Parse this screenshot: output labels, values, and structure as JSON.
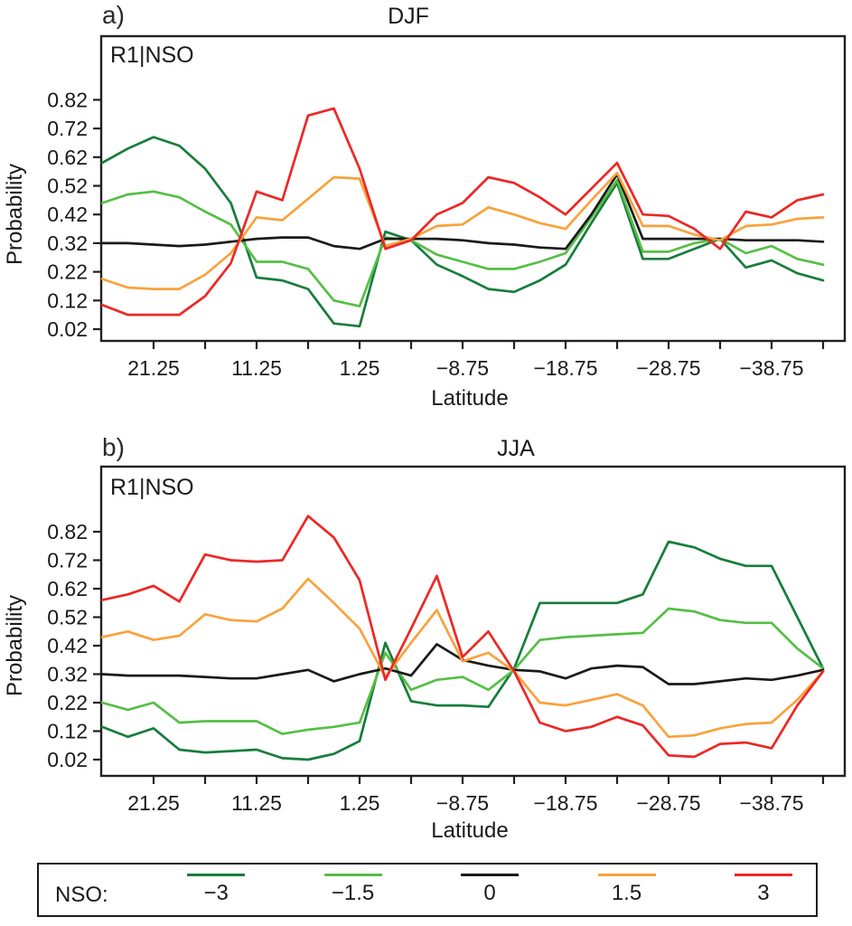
{
  "figure": {
    "panels": [
      {
        "corner_label": "a)",
        "title": "DJF",
        "inner_label": "R1|NSO",
        "ylabel": "Probability",
        "xlabel": "Latitude"
      },
      {
        "corner_label": "b)",
        "title": "JJA",
        "inner_label": "R1|NSO",
        "ylabel": "Probability",
        "xlabel": "Latitude"
      }
    ],
    "legend": {
      "prefix": "NSO:",
      "entries": [
        {
          "label": "−3",
          "color": "#177d3b"
        },
        {
          "label": "−1.5",
          "color": "#55bf45"
        },
        {
          "label": "0",
          "color": "#1a1a1a"
        },
        {
          "label": "1.5",
          "color": "#f9a23c"
        },
        {
          "label": "3",
          "color": "#ed2724"
        }
      ]
    },
    "colors": {
      "axis": "#231f20",
      "dark_green": "#177d3b",
      "light_green": "#55bf45",
      "black": "#1a1a1a",
      "orange": "#f9a23c",
      "red": "#ed2724"
    }
  },
  "chart_data": [
    {
      "type": "line",
      "title": "DJF",
      "annotation": "R1|NSO",
      "xlabel": "Latitude",
      "ylabel": "Probability",
      "x": [
        26.25,
        23.75,
        21.25,
        18.75,
        16.25,
        13.75,
        11.25,
        8.75,
        6.25,
        3.75,
        1.25,
        -1.25,
        -3.75,
        -6.25,
        -8.75,
        -11.25,
        -13.75,
        -16.25,
        -18.75,
        -21.25,
        -23.75,
        -26.25,
        -28.75,
        -31.25,
        -33.75,
        -36.25,
        -38.75,
        -41.25,
        -43.75
      ],
      "xlim": [
        26.5,
        -45.9
      ],
      "ylim": [
        -0.02,
        1.04
      ],
      "grid": false,
      "y_ticks": [
        {
          "label": "0.02",
          "value": 0.02
        },
        {
          "label": "0.12",
          "value": 0.12
        },
        {
          "label": "0.22",
          "value": 0.22
        },
        {
          "label": "0.32",
          "value": 0.32
        },
        {
          "label": "0.42",
          "value": 0.42
        },
        {
          "label": "0.52",
          "value": 0.52
        },
        {
          "label": "0.62",
          "value": 0.62
        },
        {
          "label": "0.72",
          "value": 0.72
        },
        {
          "label": "0.82",
          "value": 0.82
        }
      ],
      "x_minor_ticks": [
        21.25,
        16.25,
        11.25,
        6.25,
        1.25,
        -3.75,
        -8.75,
        -13.75,
        -18.75,
        -23.75,
        -28.75,
        -33.75,
        -38.75,
        -43.75
      ],
      "x_major_ticks": [
        {
          "label": "21.25",
          "lat": 21.25
        },
        {
          "label": "11.25",
          "lat": 11.25
        },
        {
          "label": "1.25",
          "lat": 1.25
        },
        {
          "label": "−8.75",
          "lat": -8.75
        },
        {
          "label": "−18.75",
          "lat": -18.75
        },
        {
          "label": "−28.75",
          "lat": -28.75
        },
        {
          "label": "−38.75",
          "lat": -38.75
        }
      ],
      "series": [
        {
          "name": "NSO −3",
          "color": "#177d3b",
          "values": [
            0.6,
            0.65,
            0.69,
            0.66,
            0.58,
            0.46,
            0.2,
            0.19,
            0.16,
            0.04,
            0.03,
            0.36,
            0.33,
            0.245,
            0.205,
            0.16,
            0.15,
            0.19,
            0.245,
            0.39,
            0.53,
            0.265,
            0.265,
            0.3,
            0.335,
            0.235,
            0.26,
            0.215,
            0.19
          ]
        },
        {
          "name": "NSO −1.5",
          "color": "#55bf45",
          "values": [
            0.46,
            0.49,
            0.5,
            0.48,
            0.43,
            0.385,
            0.255,
            0.255,
            0.23,
            0.12,
            0.1,
            0.34,
            0.33,
            0.28,
            0.255,
            0.23,
            0.23,
            0.255,
            0.285,
            0.41,
            0.54,
            0.29,
            0.29,
            0.32,
            0.335,
            0.285,
            0.31,
            0.265,
            0.245
          ]
        },
        {
          "name": "NSO 0",
          "color": "#1a1a1a",
          "values": [
            0.32,
            0.32,
            0.315,
            0.31,
            0.315,
            0.325,
            0.335,
            0.34,
            0.34,
            0.31,
            0.3,
            0.335,
            0.335,
            0.335,
            0.33,
            0.32,
            0.315,
            0.305,
            0.3,
            0.42,
            0.56,
            0.335,
            0.335,
            0.335,
            0.335,
            0.33,
            0.33,
            0.33,
            0.325
          ]
        },
        {
          "name": "NSO 1.5",
          "color": "#f9a23c",
          "values": [
            0.195,
            0.165,
            0.16,
            0.16,
            0.21,
            0.285,
            0.41,
            0.4,
            0.475,
            0.55,
            0.545,
            0.31,
            0.335,
            0.38,
            0.385,
            0.445,
            0.42,
            0.39,
            0.37,
            0.47,
            0.565,
            0.38,
            0.38,
            0.35,
            0.33,
            0.38,
            0.385,
            0.405,
            0.41
          ]
        },
        {
          "name": "NSO 3",
          "color": "#ed2724",
          "values": [
            0.105,
            0.07,
            0.07,
            0.07,
            0.135,
            0.25,
            0.5,
            0.47,
            0.765,
            0.79,
            0.58,
            0.3,
            0.33,
            0.42,
            0.46,
            0.55,
            0.53,
            0.48,
            0.42,
            0.51,
            0.6,
            0.42,
            0.415,
            0.37,
            0.3,
            0.43,
            0.41,
            0.47,
            0.49
          ]
        }
      ]
    },
    {
      "type": "line",
      "title": "JJA",
      "annotation": "R1|NSO",
      "xlabel": "Latitude",
      "ylabel": "Probability",
      "x": [
        26.25,
        23.75,
        21.25,
        18.75,
        16.25,
        13.75,
        11.25,
        8.75,
        6.25,
        3.75,
        1.25,
        -1.25,
        -3.75,
        -6.25,
        -8.75,
        -11.25,
        -13.75,
        -16.25,
        -18.75,
        -21.25,
        -23.75,
        -26.25,
        -28.75,
        -31.25,
        -33.75,
        -36.25,
        -38.75,
        -41.25,
        -43.75
      ],
      "xlim": [
        26.5,
        -45.9
      ],
      "ylim": [
        -0.02,
        1.05
      ],
      "grid": false,
      "y_ticks": [
        {
          "label": "0.02",
          "value": 0.02
        },
        {
          "label": "0.12",
          "value": 0.12
        },
        {
          "label": "0.22",
          "value": 0.22
        },
        {
          "label": "0.32",
          "value": 0.32
        },
        {
          "label": "0.42",
          "value": 0.42
        },
        {
          "label": "0.52",
          "value": 0.52
        },
        {
          "label": "0.62",
          "value": 0.62
        },
        {
          "label": "0.72",
          "value": 0.72
        },
        {
          "label": "0.82",
          "value": 0.82
        }
      ],
      "x_minor_ticks": [
        21.25,
        16.25,
        11.25,
        6.25,
        1.25,
        -3.75,
        -8.75,
        -13.75,
        -18.75,
        -23.75,
        -28.75,
        -33.75,
        -38.75,
        -43.75
      ],
      "x_major_ticks": [
        {
          "label": "21.25",
          "lat": 21.25
        },
        {
          "label": "11.25",
          "lat": 11.25
        },
        {
          "label": "1.25",
          "lat": 1.25
        },
        {
          "label": "−8.75",
          "lat": -8.75
        },
        {
          "label": "−18.75",
          "lat": -18.75
        },
        {
          "label": "−28.75",
          "lat": -28.75
        },
        {
          "label": "−38.75",
          "lat": -38.75
        }
      ],
      "series": [
        {
          "name": "NSO −3",
          "color": "#177d3b",
          "values": [
            0.135,
            0.1,
            0.13,
            0.055,
            0.045,
            0.05,
            0.055,
            0.025,
            0.02,
            0.04,
            0.085,
            0.43,
            0.225,
            0.21,
            0.21,
            0.205,
            0.34,
            0.57,
            0.57,
            0.57,
            0.57,
            0.6,
            0.785,
            0.765,
            0.725,
            0.7,
            0.7,
            0.52,
            0.34
          ]
        },
        {
          "name": "NSO −1.5",
          "color": "#55bf45",
          "values": [
            0.22,
            0.195,
            0.22,
            0.15,
            0.155,
            0.155,
            0.155,
            0.11,
            0.125,
            0.135,
            0.15,
            0.395,
            0.265,
            0.3,
            0.31,
            0.265,
            0.335,
            0.44,
            0.45,
            0.455,
            0.46,
            0.465,
            0.55,
            0.54,
            0.51,
            0.5,
            0.5,
            0.41,
            0.34
          ]
        },
        {
          "name": "NSO 0",
          "color": "#1a1a1a",
          "values": [
            0.32,
            0.315,
            0.315,
            0.315,
            0.31,
            0.305,
            0.305,
            0.32,
            0.335,
            0.295,
            0.32,
            0.34,
            0.315,
            0.425,
            0.37,
            0.35,
            0.335,
            0.33,
            0.305,
            0.34,
            0.35,
            0.345,
            0.285,
            0.285,
            0.295,
            0.305,
            0.3,
            0.315,
            0.335
          ]
        },
        {
          "name": "NSO 1.5",
          "color": "#f9a23c",
          "values": [
            0.45,
            0.47,
            0.44,
            0.455,
            0.53,
            0.51,
            0.505,
            0.55,
            0.655,
            0.57,
            0.48,
            0.31,
            0.43,
            0.545,
            0.365,
            0.395,
            0.33,
            0.22,
            0.21,
            0.23,
            0.25,
            0.21,
            0.1,
            0.105,
            0.13,
            0.145,
            0.15,
            0.23,
            0.33
          ]
        },
        {
          "name": "NSO 3",
          "color": "#ed2724",
          "values": [
            0.58,
            0.6,
            0.63,
            0.575,
            0.74,
            0.72,
            0.715,
            0.72,
            0.875,
            0.8,
            0.65,
            0.3,
            0.48,
            0.665,
            0.38,
            0.47,
            0.33,
            0.15,
            0.12,
            0.135,
            0.17,
            0.14,
            0.035,
            0.03,
            0.075,
            0.08,
            0.06,
            0.21,
            0.33
          ]
        }
      ]
    }
  ]
}
